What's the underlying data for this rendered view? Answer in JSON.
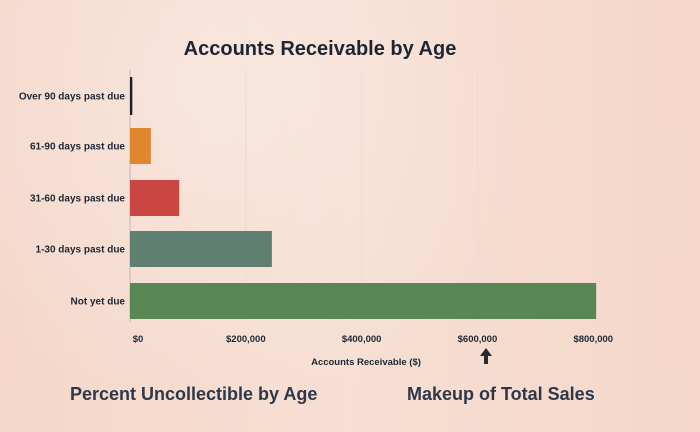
{
  "chart_data": {
    "type": "bar",
    "orientation": "horizontal",
    "title": "Accounts Receivable by Age",
    "xlabel": "Accounts Receivable ($)",
    "ylabel": "",
    "categories": [
      "Over 90 days past due",
      "61-90 days past due",
      "31-60 days past due",
      "1-30 days past due",
      "Not yet due"
    ],
    "values": [
      4000,
      36000,
      85000,
      245000,
      805000
    ],
    "colors": [
      "#1e1e28",
      "#e0862e",
      "#c94643",
      "#5f8070",
      "#5a8655"
    ],
    "xlim": [
      0,
      860000
    ],
    "xticks": [
      0,
      200000,
      400000,
      600000,
      800000
    ],
    "xtick_labels": [
      "$0",
      "$200,000",
      "$400,000",
      "$600,000",
      "$800,000"
    ],
    "grid": true
  },
  "headings": {
    "left": "Percent Uncollectible by Age",
    "right": "Makeup of Total Sales"
  },
  "icons": {
    "cursor": "mouse-pointer-icon"
  }
}
